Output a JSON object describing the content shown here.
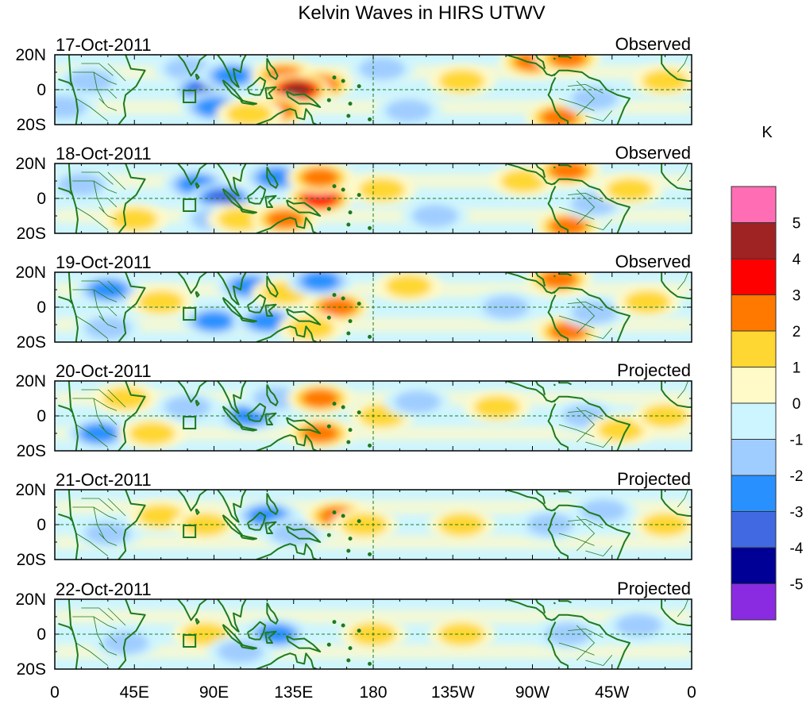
{
  "title": "Kelvin Waves in HIRS UTWV",
  "colorbar": {
    "unit_label": "K",
    "tick_labels": [
      "5",
      "4",
      "3",
      "2",
      "1",
      "0",
      "-1",
      "-2",
      "-3",
      "-4",
      "-5"
    ],
    "bins": [
      {
        "range": "above 5",
        "color": "#ff6eb4"
      },
      {
        "range": "4 to 5",
        "color": "#a02323"
      },
      {
        "range": "3 to 4",
        "color": "#ff0000"
      },
      {
        "range": "2 to 3",
        "color": "#ff7800"
      },
      {
        "range": "1 to 2",
        "color": "#ffd732"
      },
      {
        "range": "0 to 1",
        "color": "#fffac8"
      },
      {
        "range": "-1 to 0",
        "color": "#cdf5ff"
      },
      {
        "range": "-2 to -1",
        "color": "#a0cdff"
      },
      {
        "range": "-3 to -2",
        "color": "#2891ff"
      },
      {
        "range": "-4 to -3",
        "color": "#4169e1"
      },
      {
        "range": "-5 to -4",
        "color": "#000096"
      },
      {
        "range": "below -5",
        "color": "#8a2be2"
      }
    ]
  },
  "x_axis_labels": [
    "0",
    "45E",
    "90E",
    "135E",
    "180",
    "135W",
    "90W",
    "45W",
    "0"
  ],
  "y_axis_labels": [
    "20N",
    "0",
    "20S"
  ],
  "panels": [
    {
      "date": "17-Oct-2011",
      "status": "Observed"
    },
    {
      "date": "18-Oct-2011",
      "status": "Observed"
    },
    {
      "date": "19-Oct-2011",
      "status": "Observed"
    },
    {
      "date": "20-Oct-2011",
      "status": "Projected"
    },
    {
      "date": "21-Oct-2011",
      "status": "Projected"
    },
    {
      "date": "22-Oct-2011",
      "status": "Projected"
    }
  ],
  "anomaly_features": [
    [
      {
        "lon": 20,
        "lat": 5,
        "value": -1.5
      },
      {
        "lon": 5,
        "lat": -10,
        "value": -1.5
      },
      {
        "lon": 75,
        "lat": 12,
        "value": -1.5
      },
      {
        "lon": 85,
        "lat": 0,
        "value": -3.5
      },
      {
        "lon": 90,
        "lat": -10,
        "value": -2.5
      },
      {
        "lon": 100,
        "lat": 8,
        "value": -2.5
      },
      {
        "lon": 130,
        "lat": 8,
        "value": 2.5
      },
      {
        "lon": 150,
        "lat": 3,
        "value": 2.5
      },
      {
        "lon": 137,
        "lat": 0,
        "value": 4.5
      },
      {
        "lon": 125,
        "lat": -12,
        "value": 2.5
      },
      {
        "lon": 110,
        "lat": -14,
        "value": 1.5
      },
      {
        "lon": 185,
        "lat": 12,
        "value": -1.5
      },
      {
        "lon": 200,
        "lat": -12,
        "value": -1.5
      },
      {
        "lon": 230,
        "lat": 5,
        "value": 1.5
      },
      {
        "lon": 270,
        "lat": 16,
        "value": 2.5
      },
      {
        "lon": 290,
        "lat": 18,
        "value": 2.5
      },
      {
        "lon": 285,
        "lat": -16,
        "value": 2.5
      },
      {
        "lon": 305,
        "lat": -5,
        "value": -1.5
      },
      {
        "lon": 345,
        "lat": 5,
        "value": 1.5
      }
    ],
    [
      {
        "lon": 15,
        "lat": 8,
        "value": -1.5
      },
      {
        "lon": 45,
        "lat": -12,
        "value": 1.5
      },
      {
        "lon": 80,
        "lat": 8,
        "value": -2.5
      },
      {
        "lon": 95,
        "lat": 0,
        "value": -3.5
      },
      {
        "lon": 90,
        "lat": -12,
        "value": -1.5
      },
      {
        "lon": 125,
        "lat": 12,
        "value": -2.5
      },
      {
        "lon": 105,
        "lat": -12,
        "value": 1.5
      },
      {
        "lon": 150,
        "lat": 0,
        "value": 3.5
      },
      {
        "lon": 150,
        "lat": 12,
        "value": 2.5
      },
      {
        "lon": 130,
        "lat": -12,
        "value": 2.5
      },
      {
        "lon": 185,
        "lat": 5,
        "value": 1.5
      },
      {
        "lon": 215,
        "lat": -10,
        "value": -1.5
      },
      {
        "lon": 265,
        "lat": 10,
        "value": 1.5
      },
      {
        "lon": 290,
        "lat": 16,
        "value": 2.5
      },
      {
        "lon": 290,
        "lat": -16,
        "value": 2.5
      },
      {
        "lon": 305,
        "lat": -3,
        "value": -1.5
      },
      {
        "lon": 325,
        "lat": 5,
        "value": 1.5
      }
    ],
    [
      {
        "lon": 30,
        "lat": 10,
        "value": -2.5
      },
      {
        "lon": 30,
        "lat": -12,
        "value": -1.5
      },
      {
        "lon": 60,
        "lat": 3,
        "value": 1.5
      },
      {
        "lon": 90,
        "lat": -8,
        "value": -2.5
      },
      {
        "lon": 110,
        "lat": 12,
        "value": -2.5
      },
      {
        "lon": 120,
        "lat": -8,
        "value": -2.5
      },
      {
        "lon": 130,
        "lat": 8,
        "value": 1.5
      },
      {
        "lon": 160,
        "lat": 0,
        "value": 2.5
      },
      {
        "lon": 150,
        "lat": 15,
        "value": -2.5
      },
      {
        "lon": 145,
        "lat": -12,
        "value": 1.5
      },
      {
        "lon": 200,
        "lat": 12,
        "value": 1.5
      },
      {
        "lon": 255,
        "lat": 0,
        "value": -1.5
      },
      {
        "lon": 285,
        "lat": 16,
        "value": 2.5
      },
      {
        "lon": 290,
        "lat": -14,
        "value": 2.5
      },
      {
        "lon": 305,
        "lat": -3,
        "value": -1.5
      },
      {
        "lon": 335,
        "lat": 3,
        "value": 1.5
      }
    ],
    [
      {
        "lon": 25,
        "lat": -10,
        "value": -2.5
      },
      {
        "lon": 40,
        "lat": 10,
        "value": 1.5
      },
      {
        "lon": 55,
        "lat": -10,
        "value": 1.5
      },
      {
        "lon": 75,
        "lat": 5,
        "value": -1.5
      },
      {
        "lon": 110,
        "lat": 0,
        "value": -2.5
      },
      {
        "lon": 125,
        "lat": 10,
        "value": -1.5
      },
      {
        "lon": 150,
        "lat": 10,
        "value": 2.5
      },
      {
        "lon": 150,
        "lat": -10,
        "value": 2.5
      },
      {
        "lon": 185,
        "lat": 0,
        "value": 1.5
      },
      {
        "lon": 205,
        "lat": 8,
        "value": -1.5
      },
      {
        "lon": 250,
        "lat": 5,
        "value": 1.5
      },
      {
        "lon": 300,
        "lat": 0,
        "value": -1.5
      },
      {
        "lon": 320,
        "lat": -8,
        "value": 1.5
      },
      {
        "lon": 345,
        "lat": 0,
        "value": 1.5
      }
    ],
    [
      {
        "lon": 30,
        "lat": -5,
        "value": -1.5
      },
      {
        "lon": 60,
        "lat": 5,
        "value": 1.5
      },
      {
        "lon": 85,
        "lat": 0,
        "value": 1.5
      },
      {
        "lon": 120,
        "lat": 5,
        "value": -2.5
      },
      {
        "lon": 135,
        "lat": -5,
        "value": -1.5
      },
      {
        "lon": 160,
        "lat": 5,
        "value": 2.5
      },
      {
        "lon": 175,
        "lat": 0,
        "value": 1.5
      },
      {
        "lon": 230,
        "lat": 0,
        "value": 1.5
      },
      {
        "lon": 280,
        "lat": 0,
        "value": -1.5
      },
      {
        "lon": 310,
        "lat": 8,
        "value": -1.5
      },
      {
        "lon": 345,
        "lat": 0,
        "value": 1.5
      }
    ],
    [
      {
        "lon": 40,
        "lat": -5,
        "value": -1.5
      },
      {
        "lon": 85,
        "lat": 0,
        "value": 1.5
      },
      {
        "lon": 125,
        "lat": 0,
        "value": -2.5
      },
      {
        "lon": 105,
        "lat": -10,
        "value": -1.5
      },
      {
        "lon": 180,
        "lat": 0,
        "value": 1.5
      },
      {
        "lon": 230,
        "lat": 0,
        "value": 1.5
      },
      {
        "lon": 290,
        "lat": 0,
        "value": -1.5
      },
      {
        "lon": 330,
        "lat": 5,
        "value": -1.5
      }
    ]
  ]
}
